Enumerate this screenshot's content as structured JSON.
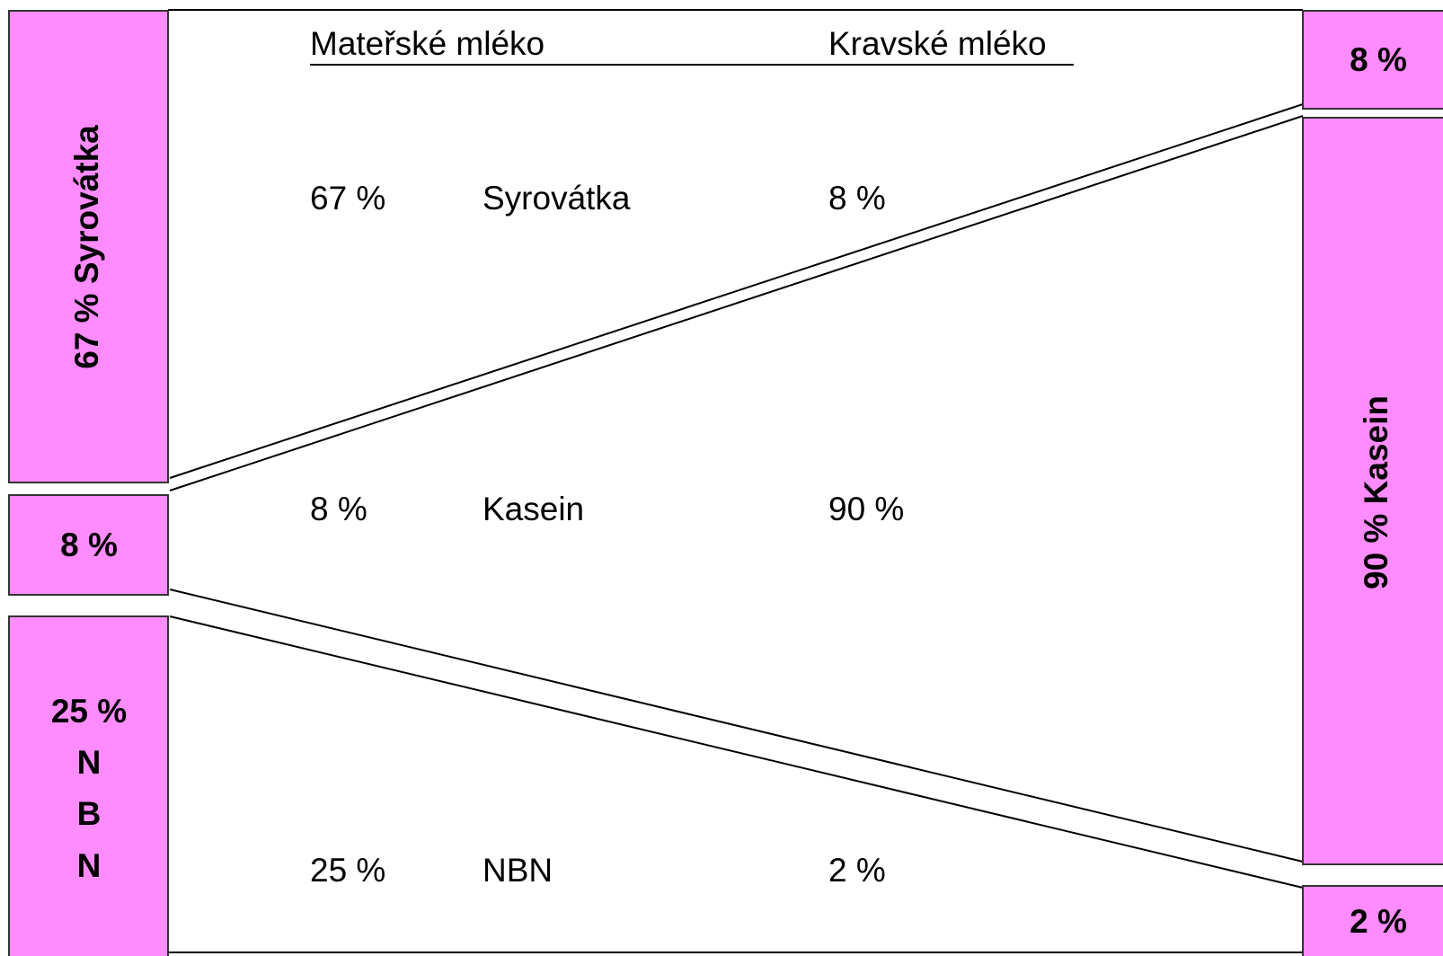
{
  "header": {
    "human": "Mateřské mléko",
    "cow": "Kravské mléko"
  },
  "rows": [
    [
      "67 %",
      "Syrovátka",
      "8 %"
    ],
    [
      "8 %",
      "Kasein",
      "90 %"
    ],
    [
      "25 %",
      "NBN",
      "2 %"
    ]
  ],
  "left_boxes": [
    [
      "67 % Syrovátka"
    ],
    [
      "8 %"
    ],
    [
      "25 %",
      "N",
      "B",
      "N"
    ]
  ],
  "right_boxes": [
    [
      "8 %"
    ],
    [
      "90 % Kasein"
    ],
    [
      "2 %"
    ]
  ]
}
